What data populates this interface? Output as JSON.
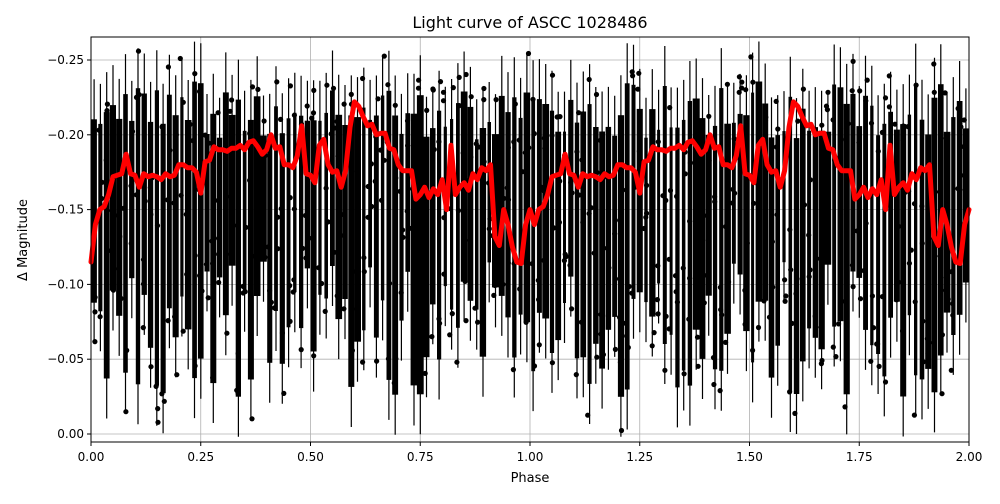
{
  "figure": {
    "title": "Light curve of ASCC 1028486",
    "xlabel": "Phase",
    "ylabel": "Δ Magnitude"
  },
  "axes": {
    "xticks": [
      "0.00",
      "0.25",
      "0.50",
      "0.75",
      "1.00",
      "1.25",
      "1.50",
      "1.75",
      "2.00"
    ],
    "yticks": [
      "−0.25",
      "−0.20",
      "−0.15",
      "−0.10",
      "−0.05",
      "0.00"
    ]
  },
  "chart_data": {
    "type": "scatter",
    "title": "Light curve of ASCC 1028486",
    "xlabel": "Phase",
    "ylabel": "Δ Magnitude",
    "xlim": [
      0.0,
      2.0
    ],
    "ylim": [
      0.005,
      -0.265
    ],
    "y_inverted": true,
    "grid": true,
    "legend": null,
    "series": [
      {
        "name": "observations",
        "style": "black points with vertical error bars",
        "color": "#000000",
        "description": "Dense phase-folded photometry, vertical columns spanning roughly -0.26 to 0.00 mag, repeated over phase 0-2"
      },
      {
        "name": "binned curve",
        "style": "thick line",
        "color": "#ff0000",
        "x": [
          0.0,
          0.01,
          0.02,
          0.03,
          0.04,
          0.05,
          0.06,
          0.07,
          0.08,
          0.09,
          0.1,
          0.11,
          0.12,
          0.13,
          0.14,
          0.15,
          0.16,
          0.17,
          0.18,
          0.19,
          0.2,
          0.21,
          0.22,
          0.23,
          0.24,
          0.25,
          0.26,
          0.27,
          0.28,
          0.29,
          0.3,
          0.31,
          0.32,
          0.33,
          0.34,
          0.35,
          0.36,
          0.37,
          0.38,
          0.39,
          0.4,
          0.41,
          0.42,
          0.43,
          0.44,
          0.45,
          0.46,
          0.47,
          0.48,
          0.49,
          0.5,
          0.51,
          0.52,
          0.53,
          0.54,
          0.55,
          0.56,
          0.57,
          0.58,
          0.59,
          0.6,
          0.61,
          0.62,
          0.63,
          0.64,
          0.65,
          0.66,
          0.67,
          0.68,
          0.69,
          0.7,
          0.71,
          0.72,
          0.73,
          0.74,
          0.75,
          0.76,
          0.77,
          0.78,
          0.79,
          0.8,
          0.81,
          0.82,
          0.83,
          0.84,
          0.85,
          0.86,
          0.87,
          0.88,
          0.89,
          0.9,
          0.91,
          0.92,
          0.93,
          0.94,
          0.95,
          0.96,
          0.97,
          0.98,
          0.99,
          1.0
        ],
        "y": [
          -0.115,
          -0.14,
          -0.15,
          -0.152,
          -0.16,
          -0.172,
          -0.173,
          -0.174,
          -0.187,
          -0.174,
          -0.173,
          -0.165,
          -0.174,
          -0.172,
          -0.173,
          -0.172,
          -0.17,
          -0.174,
          -0.172,
          -0.173,
          -0.18,
          -0.18,
          -0.178,
          -0.178,
          -0.175,
          -0.161,
          -0.182,
          -0.183,
          -0.192,
          -0.19,
          -0.19,
          -0.189,
          -0.191,
          -0.191,
          -0.193,
          -0.19,
          -0.195,
          -0.196,
          -0.192,
          -0.187,
          -0.19,
          -0.2,
          -0.191,
          -0.192,
          -0.18,
          -0.18,
          -0.178,
          -0.186,
          -0.206,
          -0.174,
          -0.173,
          -0.168,
          -0.193,
          -0.197,
          -0.18,
          -0.175,
          -0.176,
          -0.165,
          -0.176,
          -0.205,
          -0.222,
          -0.219,
          -0.212,
          -0.206,
          -0.207,
          -0.2,
          -0.201,
          -0.201,
          -0.191,
          -0.19,
          -0.18,
          -0.176,
          -0.176,
          -0.176,
          -0.157,
          -0.16,
          -0.165,
          -0.158,
          -0.164,
          -0.16,
          -0.17,
          -0.15,
          -0.193,
          -0.16,
          -0.165,
          -0.168,
          -0.163,
          -0.174,
          -0.17,
          -0.178,
          -0.176,
          -0.18,
          -0.132,
          -0.126,
          -0.15,
          -0.14,
          -0.125,
          -0.115,
          -0.114,
          -0.14,
          -0.15
        ]
      }
    ]
  }
}
